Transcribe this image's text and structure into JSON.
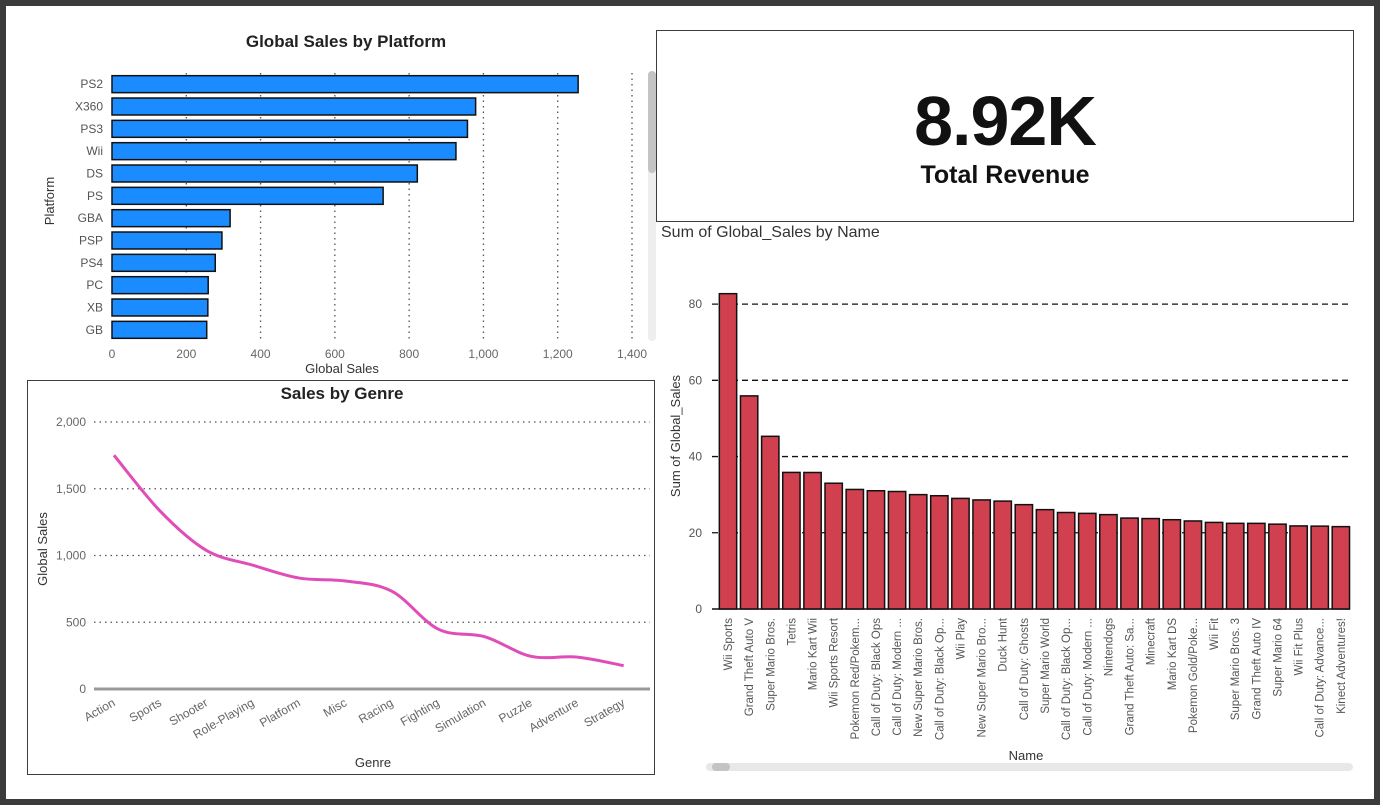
{
  "kpi": {
    "value": "8.92K",
    "label": "Total Revenue"
  },
  "chart_data": [
    {
      "type": "bar",
      "orientation": "horizontal",
      "title": "Global Sales by Platform",
      "xlabel": "Global Sales",
      "ylabel": "Platform",
      "xlim": [
        0,
        1400
      ],
      "xticks": [
        "0",
        "200",
        "400",
        "600",
        "800",
        "1,000",
        "1,200",
        "1,400"
      ],
      "grid": "vertical-dotted",
      "color": "#1a8cff",
      "categories": [
        "PS2",
        "X360",
        "PS3",
        "Wii",
        "DS",
        "PS",
        "GBA",
        "PSP",
        "PS4",
        "PC",
        "XB",
        "GB"
      ],
      "values": [
        1255,
        979,
        957,
        926,
        822,
        730,
        318,
        296,
        278,
        259,
        258,
        255
      ]
    },
    {
      "type": "line",
      "title": "Sales by Genre",
      "xlabel": "Genre",
      "ylabel": "Global Sales",
      "ylim": [
        0,
        2000
      ],
      "yticks": [
        "0",
        "500",
        "1,000",
        "1,500",
        "2,000"
      ],
      "grid": "horizontal-dotted",
      "color": "#e04db8",
      "categories": [
        "Action",
        "Sports",
        "Shooter",
        "Role-Playing",
        "Platform",
        "Misc",
        "Racing",
        "Fighting",
        "Simulation",
        "Puzzle",
        "Adventure",
        "Strategy"
      ],
      "values": [
        1751,
        1331,
        1037,
        927,
        831,
        809,
        732,
        448,
        392,
        245,
        239,
        175
      ]
    },
    {
      "type": "bar",
      "orientation": "vertical",
      "title": "Sum of Global_Sales by Name",
      "xlabel": "Name",
      "ylabel": "Sum of Global_Sales",
      "ylim": [
        0,
        90
      ],
      "yticks": [
        "0",
        "20",
        "40",
        "60",
        "80"
      ],
      "grid": "horizontal-dashed",
      "color": "#d0404e",
      "categories": [
        "Wii Sports",
        "Grand Theft Auto V",
        "Super Mario Bros.",
        "Tetris",
        "Mario Kart Wii",
        "Wii Sports Resort",
        "Pokemon Red/Pokem...",
        "Call of Duty: Black Ops",
        "Call of Duty: Modern ...",
        "New Super Mario Bros.",
        "Call of Duty: Black Op...",
        "Wii Play",
        "New Super Mario Bro...",
        "Duck Hunt",
        "Call of Duty: Ghosts",
        "Super Mario World",
        "Call of Duty: Black Op...",
        "Call of Duty: Modern ...",
        "Nintendogs",
        "Grand Theft Auto: Sa...",
        "Minecraft",
        "Mario Kart DS",
        "Pokemon Gold/Poke...",
        "Wii Fit",
        "Super Mario Bros. 3",
        "Grand Theft Auto IV",
        "Super Mario 64",
        "Wii Fit Plus",
        "Call of Duty: Advance...",
        "Kinect Adventures!"
      ],
      "values": [
        82.74,
        55.92,
        45.31,
        35.84,
        35.82,
        33.0,
        31.37,
        31.03,
        30.83,
        30.01,
        29.72,
        29.02,
        28.62,
        28.31,
        27.38,
        26.07,
        25.32,
        25.09,
        24.76,
        23.86,
        23.73,
        23.43,
        23.1,
        22.72,
        22.48,
        22.47,
        22.26,
        21.8,
        21.74,
        21.61
      ]
    }
  ]
}
